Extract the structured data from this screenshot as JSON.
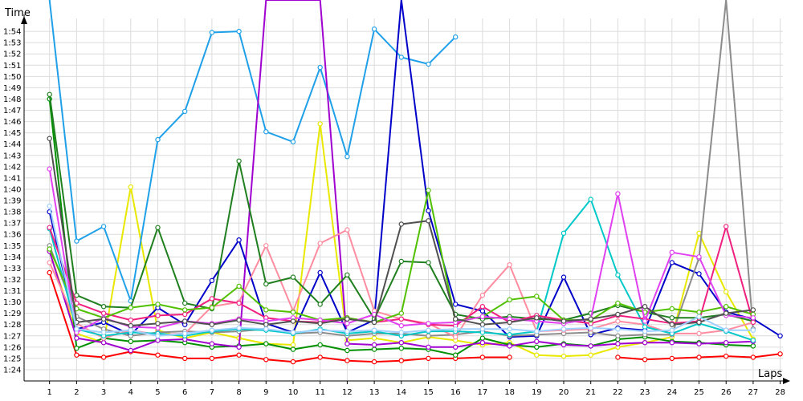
{
  "chart_data": {
    "type": "line",
    "title": "",
    "xlabel": "Laps",
    "ylabel": "Time",
    "grid": true,
    "x_ticks": [
      "1",
      "2",
      "3",
      "4",
      "5",
      "6",
      "7",
      "8",
      "9",
      "10",
      "11",
      "12",
      "13",
      "14",
      "15",
      "16",
      "17",
      "18",
      "19",
      "20",
      "21",
      "22",
      "23",
      "24",
      "25",
      "26",
      "27",
      "28"
    ],
    "y_ticks": [
      "1:24",
      "1:25",
      "1:26",
      "1:27",
      "1:28",
      "1:29",
      "1:30",
      "1:31",
      "1:32",
      "1:33",
      "1:34",
      "1:35",
      "1:36",
      "1:37",
      "1:38",
      "1:39",
      "1:40",
      "1:41",
      "1:42",
      "1:43",
      "1:44",
      "1:45",
      "1:46",
      "1:47",
      "1:48",
      "1:49",
      "1:50",
      "1:51",
      "1:52",
      "1:53",
      "1:54"
    ],
    "ylim_seconds": [
      83,
      115.5
    ],
    "xlim_laps": [
      0.06,
      28.1
    ],
    "y_tick_unit": "seconds (m:ss labels)",
    "series": [
      {
        "color": "#ff0000",
        "values": [
          92.6,
          85.3,
          85.1,
          85.6,
          85.3,
          85.0,
          85.0,
          85.3,
          84.9,
          84.7,
          85.1,
          84.8,
          84.7,
          84.8,
          85.0,
          85.0,
          85.1,
          85.1,
          null,
          null,
          null,
          85.1,
          84.9,
          85.0,
          85.1,
          85.2,
          85.1,
          85.4
        ]
      },
      {
        "color": "#e8e800",
        "values": [
          94.5,
          87.2,
          86.4,
          100.2,
          87.5,
          86.8,
          87.3,
          86.8,
          86.3,
          86.2,
          105.8,
          86.6,
          86.8,
          86.4,
          86.9,
          86.6,
          86.2,
          86.4,
          85.3,
          85.2,
          85.3,
          86.0,
          86.4,
          86.9,
          96.1,
          90.9,
          86.7,
          null
        ]
      },
      {
        "color": "#009000",
        "values": [
          108.0,
          85.9,
          86.8,
          86.5,
          86.6,
          86.4,
          86.0,
          86.1,
          86.3,
          85.8,
          86.2,
          85.7,
          85.8,
          85.9,
          85.8,
          85.3,
          86.8,
          86.2,
          86.0,
          86.3,
          86.1,
          86.7,
          86.9,
          86.5,
          86.4,
          86.2,
          86.1,
          null
        ]
      },
      {
        "color": "#1fa0e8",
        "values": [
          120,
          95.4,
          96.7,
          90.1,
          104.4,
          106.9,
          113.9,
          114.0,
          105.1,
          104.2,
          110.8,
          102.9,
          114.2,
          111.7,
          111.1,
          113.5,
          null,
          null,
          null,
          null,
          null,
          null,
          null,
          null,
          null,
          null,
          null,
          null
        ]
      },
      {
        "color": "#a000d0",
        "values": [
          94.5,
          86.8,
          86.4,
          85.7,
          86.6,
          86.7,
          86.3,
          86.0,
          120,
          120,
          120,
          86.3,
          86.2,
          86.4,
          86.0,
          86.0,
          86.4,
          86.1,
          86.5,
          86.2,
          86.1,
          86.3,
          86.4,
          86.4,
          86.3,
          86.4,
          86.5,
          null
        ]
      },
      {
        "color": "#0000c8",
        "values": [
          98.0,
          87.6,
          88.2,
          87.1,
          89.5,
          88.0,
          91.9,
          95.5,
          88.1,
          87.3,
          92.6,
          87.3,
          88.4,
          120,
          98.1,
          89.8,
          89.2,
          86.9,
          87.0,
          92.2,
          87.1,
          87.7,
          87.5,
          93.5,
          92.5,
          89.1,
          88.5,
          87.0
        ]
      },
      {
        "color": "#8c8c8c",
        "values": [
          95.0,
          88.7,
          87.6,
          87.0,
          87.3,
          87.4,
          87.3,
          87.4,
          87.6,
          87.2,
          87.3,
          87.0,
          87.2,
          87.2,
          87.0,
          87.1,
          87.4,
          87.0,
          87.1,
          87.2,
          87.3,
          87.0,
          87.1,
          87.1,
          93.9,
          120,
          87.6,
          null
        ]
      },
      {
        "color": "#ff8ca0",
        "values": [
          93.5,
          88.1,
          86.8,
          87.5,
          87.1,
          87.2,
          89.6,
          90.0,
          95.0,
          89.2,
          95.2,
          96.4,
          89.2,
          88.5,
          88.1,
          86.9,
          90.6,
          93.3,
          87.4,
          87.5,
          87.6,
          88.3,
          88.0,
          87.2,
          87.2,
          87.5,
          88.2,
          null
        ]
      },
      {
        "color": "#00c8c8",
        "values": [
          96.5,
          87.6,
          87.0,
          87.3,
          87.2,
          87.0,
          87.4,
          87.6,
          87.5,
          87.2,
          87.6,
          87.2,
          87.4,
          87.0,
          87.4,
          87.4,
          87.3,
          87.1,
          87.4,
          96.1,
          99.1,
          92.4,
          87.8,
          87.2,
          88.1,
          87.4,
          86.6,
          null
        ]
      },
      {
        "color": "#208020",
        "values": [
          108.4,
          90.6,
          89.6,
          89.5,
          96.6,
          89.9,
          89.4,
          102.5,
          91.6,
          92.2,
          89.8,
          92.4,
          88.5,
          93.6,
          93.5,
          88.9,
          88.5,
          88.7,
          88.5,
          88.4,
          89.0,
          89.7,
          89.1,
          88.6,
          88.6,
          88.9,
          88.3,
          null
        ]
      },
      {
        "color": "#f02080",
        "values": [
          96.6,
          89.9,
          89.0,
          88.4,
          88.8,
          88.9,
          90.3,
          89.9,
          88.6,
          88.3,
          88.2,
          88.6,
          88.2,
          88.5,
          88.0,
          87.9,
          89.6,
          88.2,
          88.8,
          88.4,
          88.1,
          88.8,
          88.5,
          88.1,
          88.3,
          96.7,
          88.2,
          null
        ]
      },
      {
        "color": "#50c000",
        "values": [
          94.7,
          89.4,
          88.6,
          89.5,
          89.8,
          89.3,
          89.5,
          91.4,
          89.3,
          89.1,
          88.4,
          88.6,
          88.2,
          89.0,
          99.9,
          88.3,
          88.7,
          90.2,
          90.5,
          88.4,
          88.4,
          89.9,
          89.1,
          89.4,
          89.1,
          89.6,
          88.9,
          null
        ]
      },
      {
        "color": "#e040f0",
        "values": [
          101.8,
          87.3,
          88.6,
          87.8,
          87.7,
          88.3,
          88.1,
          88.5,
          88.3,
          88.6,
          88.4,
          88.1,
          88.9,
          87.9,
          88.1,
          88.2,
          88.7,
          88.5,
          88.3,
          88.1,
          88.5,
          99.6,
          88.3,
          94.4,
          94.0,
          88.8,
          88.6,
          null
        ]
      },
      {
        "color": "#505050",
        "values": [
          104.5,
          88.2,
          88.5,
          87.9,
          88.1,
          88.3,
          88.0,
          88.4,
          88.0,
          88.3,
          88.1,
          88.5,
          88.2,
          96.9,
          97.2,
          88.5,
          88.0,
          88.2,
          88.6,
          88.3,
          88.5,
          88.9,
          89.6,
          88.0,
          88.2,
          89.0,
          89.3,
          null
        ]
      },
      {
        "color": "#9fd0ff",
        "values": [
          98.5,
          87.6,
          87.3,
          87.5,
          87.0,
          87.2,
          87.5,
          87.7,
          87.6,
          87.3,
          87.5,
          87.4,
          87.5,
          87.3,
          87.5,
          87.6,
          87.6,
          87.6,
          87.4,
          87.6,
          87.7,
          87.6,
          87.4,
          87.5,
          88.7,
          87.5,
          87.5,
          null
        ]
      }
    ]
  }
}
